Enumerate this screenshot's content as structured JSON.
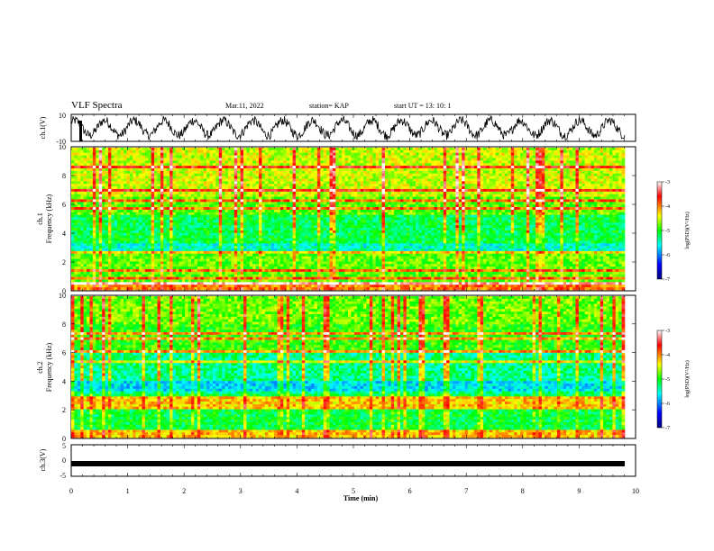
{
  "header": {
    "title": "VLF Spectra",
    "date": "Mar.11, 2022",
    "station": "station= KAP",
    "start": "start  UT  =   13: 10: 1"
  },
  "chart_data": [
    {
      "type": "line",
      "panel": "ch1-waveform",
      "ylabel": "ch.1(V)",
      "ylim": [
        -10,
        10
      ],
      "ytick_labels": [
        "10",
        "-10"
      ],
      "xlim": [
        0,
        10
      ],
      "description_series": "oscillating waveform, quasi-periodic with ~0.5 min period, amplitude mostly between -8 and +8 V"
    },
    {
      "type": "heatmap",
      "panel": "ch1-spectrogram",
      "ylabel_line1": "ch.1",
      "ylabel_line2": "Frequency (kHz)",
      "xlim": [
        0,
        10
      ],
      "ylim": [
        0,
        10
      ],
      "yticks": [
        0,
        2,
        4,
        6,
        8,
        10
      ],
      "colorbar": {
        "label": "log(PSD)(V²/Hz)",
        "range": [
          -7,
          -3
        ],
        "ticks": [
          "-3",
          "-4",
          "-5",
          "-6",
          "-7"
        ]
      }
    },
    {
      "type": "heatmap",
      "panel": "ch2-spectrogram",
      "ylabel_line1": "ch.2",
      "ylabel_line2": "Frequency (kHz)",
      "xlim": [
        0,
        10
      ],
      "ylim": [
        0,
        10
      ],
      "yticks": [
        0,
        2,
        4,
        6,
        8,
        10
      ],
      "colorbar": {
        "label": "log(PSD)(V²/Hz)",
        "range": [
          -7,
          -3
        ],
        "ticks": [
          "-3",
          "-4",
          "-5",
          "-6",
          "-7"
        ]
      }
    },
    {
      "type": "line",
      "panel": "ch3-waveform",
      "ylabel": "ch.3(V)",
      "ylim": [
        -5,
        5
      ],
      "ytick_labels": [
        "5",
        "0",
        "-5"
      ],
      "xlim": [
        0,
        10
      ],
      "xlabel": "Time (min)",
      "xtick_labels": [
        "0",
        "1",
        "2",
        "3",
        "4",
        "5",
        "6",
        "7",
        "8",
        "9",
        "10"
      ],
      "level": -1
    }
  ]
}
